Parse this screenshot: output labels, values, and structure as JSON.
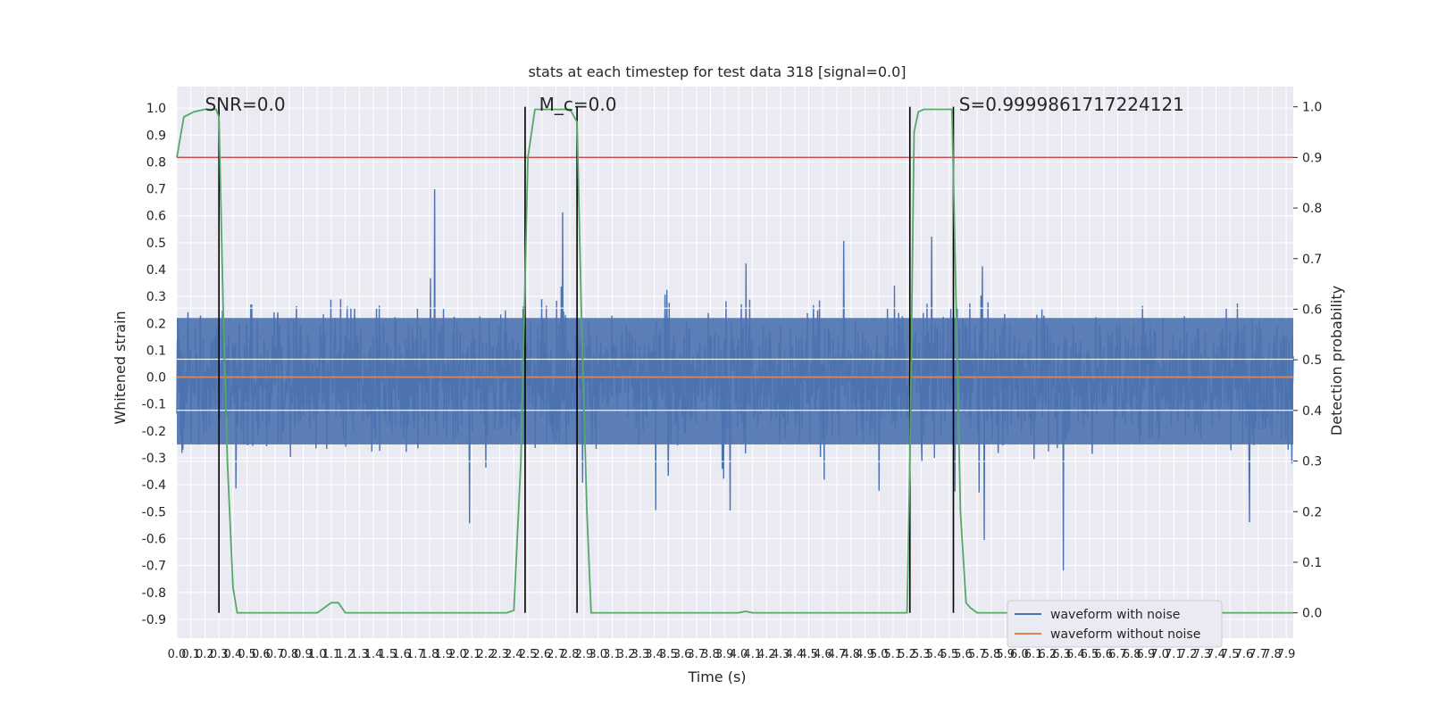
{
  "chart_data": {
    "type": "line",
    "title": "stats at each timestep for test data 318 [signal=0.0]",
    "xlabel": "Time (s)",
    "ylabel_left": "Whitened strain",
    "ylabel_right": "Detection probability",
    "xlim": [
      0.0,
      7.95
    ],
    "ylim_left": [
      -0.97,
      1.08
    ],
    "ylim_right": [
      -0.05,
      1.04
    ],
    "x_ticks": [
      0.0,
      0.1,
      0.2,
      0.3,
      0.4,
      0.5,
      0.6,
      0.7,
      0.8,
      0.9,
      1.0,
      1.1,
      1.2,
      1.3,
      1.4,
      1.5,
      1.6,
      1.7,
      1.8,
      1.9,
      2.0,
      2.1,
      2.2,
      2.3,
      2.4,
      2.5,
      2.6,
      2.7,
      2.8,
      2.9,
      3.0,
      3.1,
      3.2,
      3.3,
      3.4,
      3.5,
      3.6,
      3.7,
      3.8,
      3.9,
      4.0,
      4.1,
      4.2,
      4.3,
      4.4,
      4.5,
      4.6,
      4.7,
      4.8,
      4.9,
      5.0,
      5.1,
      5.2,
      5.3,
      5.4,
      5.5,
      5.6,
      5.7,
      5.8,
      5.9,
      6.0,
      6.1,
      6.2,
      6.3,
      6.4,
      6.5,
      6.6,
      6.7,
      6.8,
      6.9,
      7.0,
      7.1,
      7.2,
      7.3,
      7.4,
      7.5,
      7.6,
      7.7,
      7.8,
      7.9
    ],
    "y_ticks_left": [
      -0.9,
      -0.8,
      -0.7,
      -0.6,
      -0.5,
      -0.4,
      -0.3,
      -0.2,
      -0.1,
      0.0,
      0.1,
      0.2,
      0.3,
      0.4,
      0.5,
      0.6,
      0.7,
      0.8,
      0.9,
      1.0
    ],
    "y_ticks_right": [
      0.0,
      0.1,
      0.2,
      0.3,
      0.4,
      0.5,
      0.6,
      0.7,
      0.8,
      0.9,
      1.0
    ],
    "threshold_right": 0.9,
    "vertical_markers": [
      0.3,
      2.48,
      2.85,
      5.22,
      5.53
    ],
    "annotations": [
      {
        "text": "SNR=0.0",
        "x": 0.2
      },
      {
        "text": "M_c=0.0",
        "x": 2.58
      },
      {
        "text": "S=0.9999861717224121",
        "x": 5.57
      }
    ],
    "series": [
      {
        "name": "waveform with noise",
        "color": "#4c72b0",
        "kind": "noise",
        "amplitude_core": 0.3,
        "peak": 1.0,
        "seed": 318
      },
      {
        "name": "waveform without noise",
        "color": "#dd8452",
        "values_constant": 0.0
      },
      {
        "name": "detection probability",
        "color": "#55a868",
        "axis": "right",
        "x": [
          0.0,
          0.05,
          0.12,
          0.2,
          0.28,
          0.3,
          0.33,
          0.36,
          0.4,
          0.43,
          0.5,
          1.0,
          1.05,
          1.1,
          1.15,
          1.2,
          1.3,
          2.35,
          2.4,
          2.45,
          2.5,
          2.55,
          2.6,
          2.8,
          2.85,
          2.88,
          2.92,
          2.95,
          3.0,
          4.0,
          4.05,
          4.1,
          5.2,
          5.22,
          5.25,
          5.28,
          5.32,
          5.4,
          5.52,
          5.55,
          5.58,
          5.62,
          5.65,
          5.7,
          7.95
        ],
        "y": [
          0.9,
          0.98,
          0.99,
          0.995,
          0.995,
          0.98,
          0.6,
          0.3,
          0.05,
          0.0,
          0.0,
          0.0,
          0.01,
          0.02,
          0.02,
          0.0,
          0.0,
          0.0,
          0.005,
          0.3,
          0.9,
          0.995,
          0.995,
          0.995,
          0.97,
          0.6,
          0.2,
          0.0,
          0.0,
          0.0,
          0.003,
          0.0,
          0.0,
          0.3,
          0.95,
          0.99,
          0.995,
          0.995,
          0.995,
          0.6,
          0.2,
          0.02,
          0.01,
          0.0,
          0.0
        ]
      }
    ],
    "legend": [
      "waveform with noise",
      "waveform without noise"
    ],
    "legend_position": "lower-right",
    "grid": true
  }
}
